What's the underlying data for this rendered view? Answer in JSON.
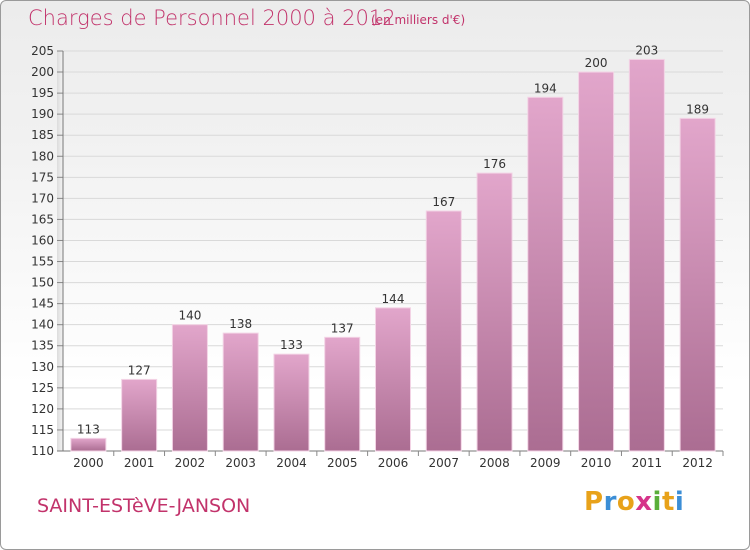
{
  "header": {
    "title": "Charges de Personnel 2000 à 2012",
    "subtitle": "(en milliers d'€)"
  },
  "footer": {
    "town": "SAINT-ESTèVE-JANSON",
    "logo_letters": [
      "P",
      "r",
      "o",
      "x",
      "i",
      "t",
      "i"
    ],
    "logo_colors": [
      "#e8a21a",
      "#3b8ed6",
      "#e8a21a",
      "#d6348a",
      "#5aae3a",
      "#e8a21a",
      "#3b8ed6"
    ]
  },
  "colors": {
    "title": "#c2336b",
    "bar_top": "#e2a6cb",
    "bar_bottom": "#ab6d92",
    "bar_stroke": "#f3d3e5",
    "grid": "#d9d9d9"
  },
  "chart_data": {
    "type": "bar",
    "title": "Charges de Personnel 2000 à 2012",
    "subtitle": "(en milliers d'€)",
    "categories": [
      "2000",
      "2001",
      "2002",
      "2003",
      "2004",
      "2005",
      "2006",
      "2007",
      "2008",
      "2009",
      "2010",
      "2011",
      "2012"
    ],
    "values": [
      113,
      127,
      140,
      138,
      133,
      137,
      144,
      167,
      176,
      194,
      200,
      203,
      189
    ],
    "data_labels": [
      "113",
      "127",
      "140",
      "138",
      "133",
      "137",
      "144",
      "167",
      "176",
      "194",
      "200",
      "203",
      "189"
    ],
    "ylim": [
      110,
      205
    ],
    "yticks": [
      110,
      115,
      120,
      125,
      130,
      135,
      140,
      145,
      150,
      155,
      160,
      165,
      170,
      175,
      180,
      185,
      190,
      195,
      200,
      205
    ],
    "ytick_labels": [
      "110",
      "115",
      "120",
      "125",
      "130",
      "135",
      "140",
      "145",
      "150",
      "155",
      "160",
      "165",
      "170",
      "175",
      "180",
      "185",
      "190",
      "195",
      "200",
      "205"
    ],
    "grid": true
  }
}
